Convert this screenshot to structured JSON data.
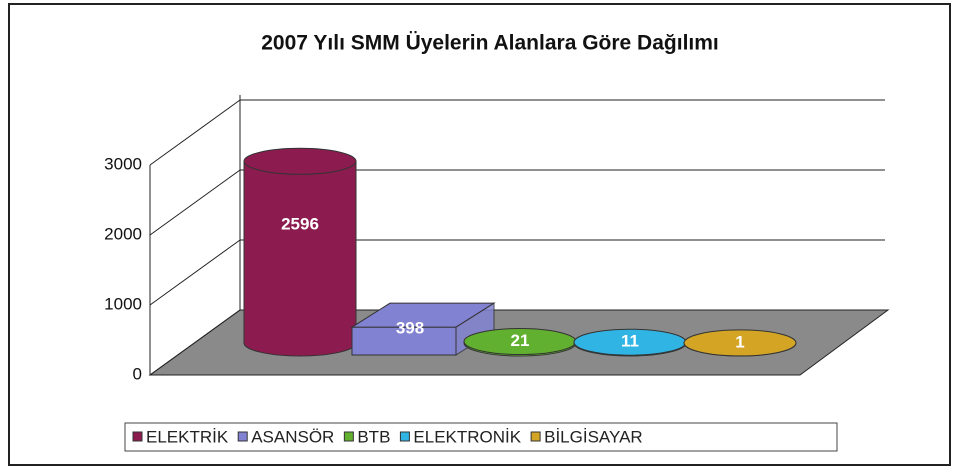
{
  "chart_data": {
    "type": "bar3d",
    "title": "2007 Yılı SMM Üyelerin Alanlara Göre Dağılımı",
    "categories": [
      "ELEKTRİK",
      "ASANSÖR",
      "BTB",
      "ELEKTRONİK",
      "BİLGİSAYAR"
    ],
    "values": [
      2596,
      398,
      21,
      11,
      1
    ],
    "colors": [
      "#8c1c50",
      "#8282d2",
      "#62b030",
      "#30b4e4",
      "#d4a424"
    ],
    "shapes": [
      "cylinder",
      "box",
      "cylinder",
      "cylinder",
      "cylinder"
    ],
    "ylim": [
      0,
      3000
    ],
    "yticks": [
      0,
      1000,
      2000,
      3000
    ],
    "grid": true,
    "legend": "bottom"
  }
}
